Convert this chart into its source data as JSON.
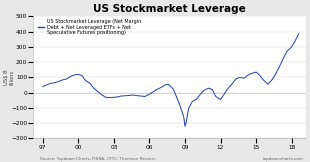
{
  "title": "US Stockmarket Leverage",
  "ylabel": "US$ B\nillions",
  "xlabel_source": "Source: Topdown Charts, FINRA, CFTC, Thomson Reuters",
  "xlabel_url": "topdowncharts.com",
  "legend_label": "US Stockmarket Leverage (Net Margin\nDebt + Net Leveraged ETFs + Net\nSpeculative Futures positioning)",
  "ylim": [
    -300,
    500
  ],
  "yticks": [
    -300,
    -200,
    -100,
    0,
    100,
    200,
    300,
    400,
    500
  ],
  "xtick_positions": [
    1997,
    2000,
    2003,
    2006,
    2009,
    2012,
    2015,
    2018
  ],
  "xticks_labels": [
    "97",
    "00",
    "03",
    "06",
    "09",
    "12",
    "15",
    "18"
  ],
  "line_color": "#1a3eb5",
  "bg_color": "#e8e8e8",
  "plot_bg": "#ffffff",
  "title_fontsize": 7.5,
  "axis_fontsize": 5,
  "years": [
    1997.0,
    1997.3,
    1997.6,
    1998.0,
    1998.3,
    1998.6,
    1999.0,
    1999.3,
    1999.6,
    2000.0,
    2000.3,
    2000.6,
    2001.0,
    2001.3,
    2001.6,
    2002.0,
    2002.3,
    2002.6,
    2003.0,
    2003.3,
    2003.6,
    2004.0,
    2004.3,
    2004.6,
    2005.0,
    2005.3,
    2005.6,
    2006.0,
    2006.3,
    2006.6,
    2007.0,
    2007.3,
    2007.6,
    2008.0,
    2008.3,
    2008.6,
    2008.9,
    2009.0,
    2009.1,
    2009.3,
    2009.6,
    2010.0,
    2010.3,
    2010.6,
    2011.0,
    2011.3,
    2011.6,
    2012.0,
    2012.3,
    2012.6,
    2013.0,
    2013.3,
    2013.6,
    2014.0,
    2014.3,
    2014.6,
    2015.0,
    2015.3,
    2015.6,
    2016.0,
    2016.3,
    2016.6,
    2017.0,
    2017.3,
    2017.6,
    2018.0,
    2018.3,
    2018.6
  ],
  "values": [
    40,
    50,
    60,
    65,
    72,
    82,
    90,
    105,
    115,
    120,
    112,
    80,
    60,
    30,
    10,
    -15,
    -30,
    -32,
    -30,
    -28,
    -22,
    -20,
    -18,
    -15,
    -20,
    -22,
    -25,
    -10,
    5,
    20,
    35,
    50,
    55,
    25,
    -30,
    -90,
    -160,
    -220,
    -195,
    -105,
    -60,
    -40,
    -10,
    15,
    30,
    20,
    -25,
    -45,
    -10,
    25,
    60,
    90,
    100,
    95,
    115,
    125,
    135,
    115,
    85,
    55,
    80,
    115,
    175,
    225,
    270,
    300,
    340,
    385
  ]
}
